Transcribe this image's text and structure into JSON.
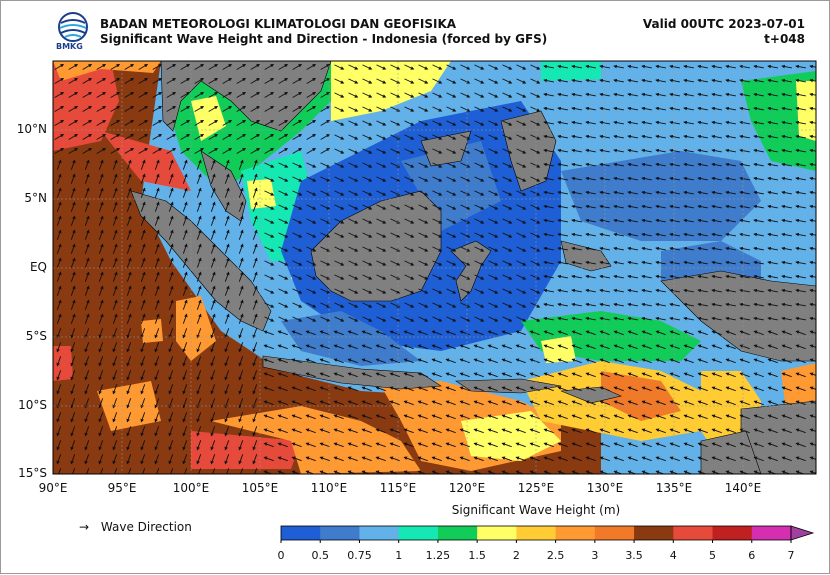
{
  "header": {
    "agency": "BADAN METEOROLOGI KLIMATOLOGI DAN GEOFISIKA",
    "product": "Significant Wave Height and Direction - Indonesia (forced by GFS)",
    "valid": "Valid 00UTC 2023-07-01",
    "lead": "t+048",
    "logo_text": "BMKG"
  },
  "axes": {
    "lat_labels": [
      "10°N",
      "5°N",
      "EQ",
      "5°S",
      "10°S",
      "15°S"
    ],
    "lon_labels": [
      "90°E",
      "95°E",
      "100°E",
      "105°E",
      "110°E",
      "115°E",
      "120°E",
      "125°E",
      "130°E",
      "135°E",
      "140°E"
    ]
  },
  "legend": {
    "arrow": "→",
    "label": "Wave Direction"
  },
  "colorbar": {
    "title": "Significant Wave Height (m)",
    "ticks": [
      "0",
      "0.5",
      "0.75",
      "1",
      "1.25",
      "1.5",
      "2",
      "2.5",
      "3",
      "3.5",
      "4",
      "5",
      "6",
      "7"
    ],
    "colors": [
      "#1e5fd6",
      "#3f7ccc",
      "#62b1e8",
      "#16e8b4",
      "#12cc5a",
      "#ffff66",
      "#ffcc33",
      "#ff9a33",
      "#f07a28",
      "#8a3a10",
      "#e64a3a",
      "#c02020",
      "#d32fb0",
      "#a040a0"
    ]
  }
}
